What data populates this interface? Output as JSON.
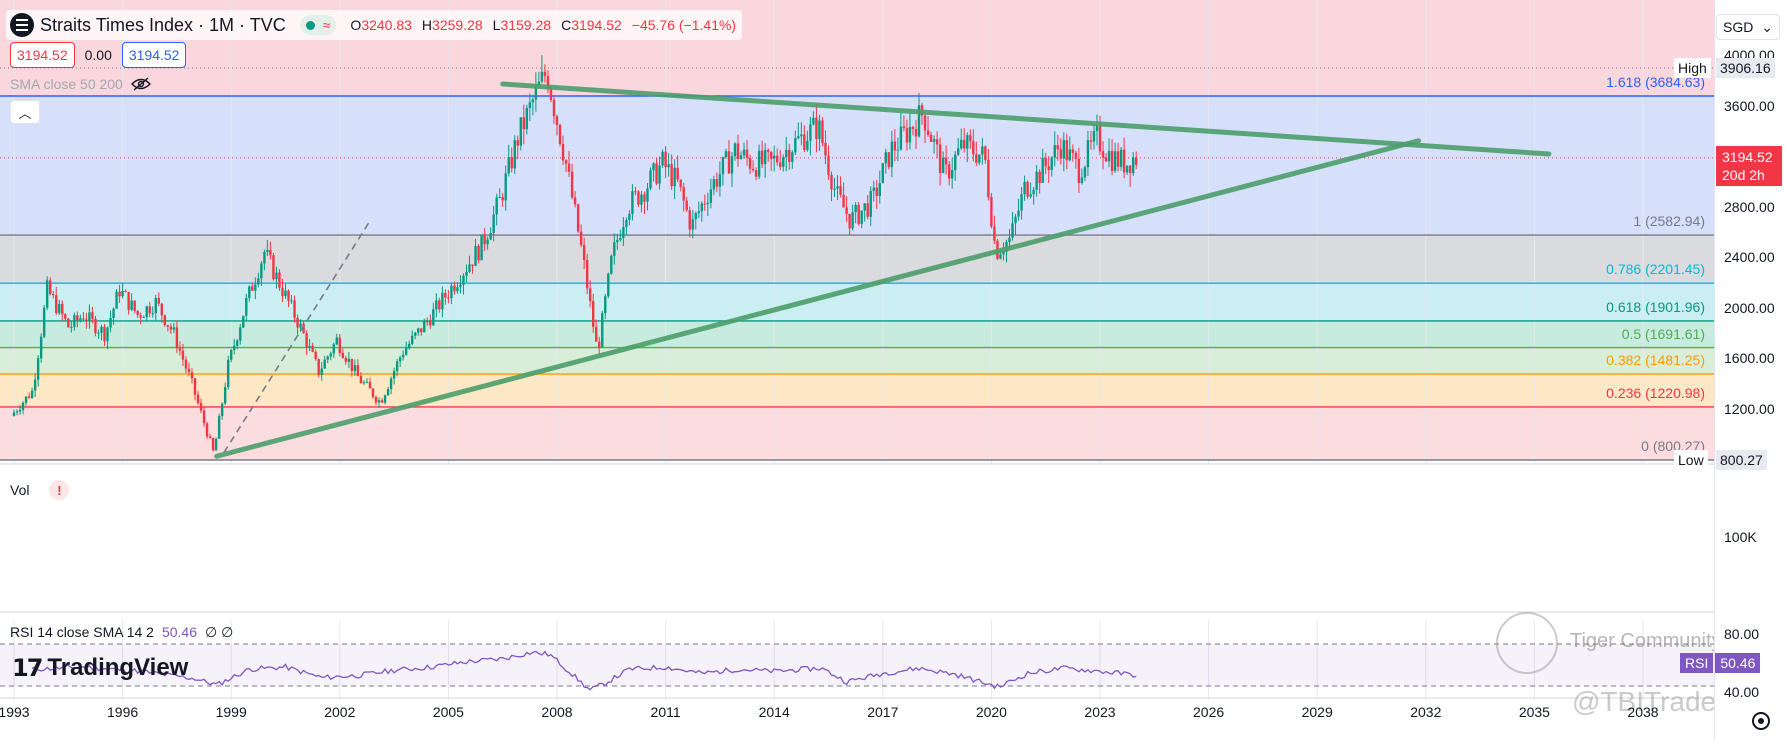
{
  "header": {
    "symbol_title": "Straits Times Index · 1M · TVC",
    "open": "3240.83",
    "open_key": "O",
    "high": "3259.28",
    "high_key": "H",
    "low": "3159.28",
    "low_key": "L",
    "close": "3194.52",
    "close_key": "C",
    "change": "−45.76 (−1.41%)",
    "wave_icon": "wave-icon"
  },
  "price_boxes": {
    "bid": "3194.52",
    "spread": "0.00",
    "ask": "3194.52"
  },
  "indicators": {
    "sma_label": "SMA close 50 200",
    "vol_label": "Vol",
    "rsi_label": "RSI 14 close SMA 14 2",
    "rsi_value": "50.46",
    "rsi_extra": "∅ ∅"
  },
  "branding": {
    "logo_text": "TradingView",
    "watermark1": "Tiger Community",
    "watermark2": "@TBITrades"
  },
  "axis": {
    "currency": "SGD",
    "price_ticks": [
      "4000.00",
      "3600.00",
      "2800.00",
      "2400.00",
      "2000.00",
      "1600.00",
      "1200.00"
    ],
    "high_label": "High",
    "high_value": "3906.16",
    "low_label": "Low",
    "low_value": "800.27",
    "current_price": "3194.52",
    "current_countdown": "20d 2h",
    "volume_tick": "100K",
    "rsi_ticks": [
      "80.00",
      "40.00"
    ],
    "rsi_tag_label": "RSI",
    "rsi_tag_value": "50.46",
    "time_ticks": [
      "1993",
      "1996",
      "1999",
      "2002",
      "2005",
      "2008",
      "2011",
      "2014",
      "2017",
      "2020",
      "2023",
      "2026",
      "2029",
      "2032",
      "2035",
      "2038"
    ]
  },
  "colors": {
    "up": "#089981",
    "down": "#f23645",
    "trendline": "#4c9e6b",
    "rsi": "#7e57c2",
    "fib_1618": "#2962ff",
    "fib_1": "#787b86",
    "fib_0786": "#00bcd4",
    "fib_0618": "#089981",
    "fib_05": "#4caf50",
    "fib_0382": "#ff9800",
    "fib_0236": "#f23645",
    "fib_0": "#787b86"
  },
  "chart_data": {
    "type": "candlestick",
    "title": "Straits Times Index · 1M · TVC",
    "currency": "SGD",
    "price_range": [
      800,
      4100
    ],
    "x_range": [
      "1993",
      "2039"
    ],
    "fibonacci": [
      {
        "ratio": "1.618",
        "price": 3684.63,
        "label": "1.618 (3684.63)",
        "color": "#2962ff"
      },
      {
        "ratio": "1",
        "price": 2582.94,
        "label": "1 (2582.94)",
        "color": "#787b86"
      },
      {
        "ratio": "0.786",
        "price": 2201.45,
        "label": "0.786 (2201.45)",
        "color": "#00bcd4"
      },
      {
        "ratio": "0.618",
        "price": 1901.96,
        "label": "0.618 (1901.96)",
        "color": "#089981"
      },
      {
        "ratio": "0.5",
        "price": 1691.61,
        "label": "0.5 (1691.61)",
        "color": "#4caf50"
      },
      {
        "ratio": "0.382",
        "price": 1481.25,
        "label": "0.382 (1481.25)",
        "color": "#ff9800"
      },
      {
        "ratio": "0.236",
        "price": 1220.98,
        "label": "0.236 (1220.98)",
        "color": "#f23645"
      },
      {
        "ratio": "0",
        "price": 800.27,
        "label": "0 (800.27)",
        "color": "#787b86"
      }
    ],
    "price_path": [
      [
        1993.0,
        1150
      ],
      [
        1993.6,
        1350
      ],
      [
        1994.0,
        2150
      ],
      [
        1994.6,
        1850
      ],
      [
        1995.0,
        1950
      ],
      [
        1995.6,
        1800
      ],
      [
        1996.0,
        2150
      ],
      [
        1996.5,
        1950
      ],
      [
        1997.0,
        2050
      ],
      [
        1997.5,
        1800
      ],
      [
        1998.0,
        1400
      ],
      [
        1998.6,
        850
      ],
      [
        1999.0,
        1550
      ],
      [
        1999.5,
        2050
      ],
      [
        2000.0,
        2450
      ],
      [
        2000.5,
        2150
      ],
      [
        2001.0,
        1850
      ],
      [
        2001.5,
        1500
      ],
      [
        2002.0,
        1750
      ],
      [
        2002.6,
        1450
      ],
      [
        2003.2,
        1260
      ],
      [
        2003.8,
        1650
      ],
      [
        2004.5,
        1900
      ],
      [
        2005.0,
        2100
      ],
      [
        2005.5,
        2300
      ],
      [
        2006.0,
        2500
      ],
      [
        2006.5,
        2850
      ],
      [
        2007.0,
        3350
      ],
      [
        2007.5,
        3700
      ],
      [
        2007.8,
        3880
      ],
      [
        2008.3,
        3200
      ],
      [
        2008.8,
        2400
      ],
      [
        2009.2,
        1650
      ],
      [
        2009.6,
        2400
      ],
      [
        2010.0,
        2800
      ],
      [
        2010.5,
        2950
      ],
      [
        2011.0,
        3150
      ],
      [
        2011.4,
        3000
      ],
      [
        2011.8,
        2650
      ],
      [
        2012.3,
        2950
      ],
      [
        2013.0,
        3250
      ],
      [
        2013.5,
        3150
      ],
      [
        2014.0,
        3150
      ],
      [
        2014.6,
        3300
      ],
      [
        2015.3,
        3450
      ],
      [
        2015.8,
        2900
      ],
      [
        2016.2,
        2700
      ],
      [
        2016.8,
        2850
      ],
      [
        2017.3,
        3250
      ],
      [
        2017.9,
        3450
      ],
      [
        2018.2,
        3550
      ],
      [
        2018.8,
        3050
      ],
      [
        2019.3,
        3300
      ],
      [
        2019.9,
        3200
      ],
      [
        2020.2,
        2450
      ],
      [
        2020.6,
        2550
      ],
      [
        2021.0,
        2950
      ],
      [
        2021.5,
        3100
      ],
      [
        2022.0,
        3300
      ],
      [
        2022.5,
        3100
      ],
      [
        2023.0,
        3350
      ],
      [
        2023.4,
        3200
      ],
      [
        2023.8,
        3150
      ],
      [
        2024.0,
        3194.52
      ]
    ],
    "trendlines": [
      {
        "name": "resistance",
        "from": [
          2006.5,
          3780
        ],
        "to": [
          2035.4,
          3225
        ]
      },
      {
        "name": "support",
        "from": [
          1998.6,
          830
        ],
        "to": [
          2031.8,
          3330
        ]
      }
    ],
    "dashed_line": {
      "from": [
        1998.8,
        860
      ],
      "to": [
        2002.8,
        2680
      ]
    },
    "volume_axis_tick": "100K",
    "rsi": {
      "length": 14,
      "smoothing": "SMA 14",
      "current": 50.46,
      "upper": 80,
      "lower": 40,
      "path": [
        [
          1993.5,
          56
        ],
        [
          1995,
          58
        ],
        [
          1996.5,
          54
        ],
        [
          1998,
          47
        ],
        [
          1998.6,
          41
        ],
        [
          1999.5,
          56
        ],
        [
          2000.5,
          58
        ],
        [
          2001.5,
          48
        ],
        [
          2002.5,
          50
        ],
        [
          2003.5,
          55
        ],
        [
          2004.5,
          58
        ],
        [
          2005.5,
          63
        ],
        [
          2006.5,
          66
        ],
        [
          2007.3,
          72
        ],
        [
          2007.8,
          70
        ],
        [
          2008.3,
          55
        ],
        [
          2008.9,
          36
        ],
        [
          2009.3,
          42
        ],
        [
          2010,
          56
        ],
        [
          2011,
          58
        ],
        [
          2012,
          52
        ],
        [
          2013,
          56
        ],
        [
          2014,
          54
        ],
        [
          2015.3,
          57
        ],
        [
          2016,
          44
        ],
        [
          2017,
          52
        ],
        [
          2018,
          57
        ],
        [
          2019,
          51
        ],
        [
          2020.2,
          39
        ],
        [
          2021,
          52
        ],
        [
          2022,
          57
        ],
        [
          2023,
          54
        ],
        [
          2024,
          50.46
        ]
      ]
    }
  }
}
